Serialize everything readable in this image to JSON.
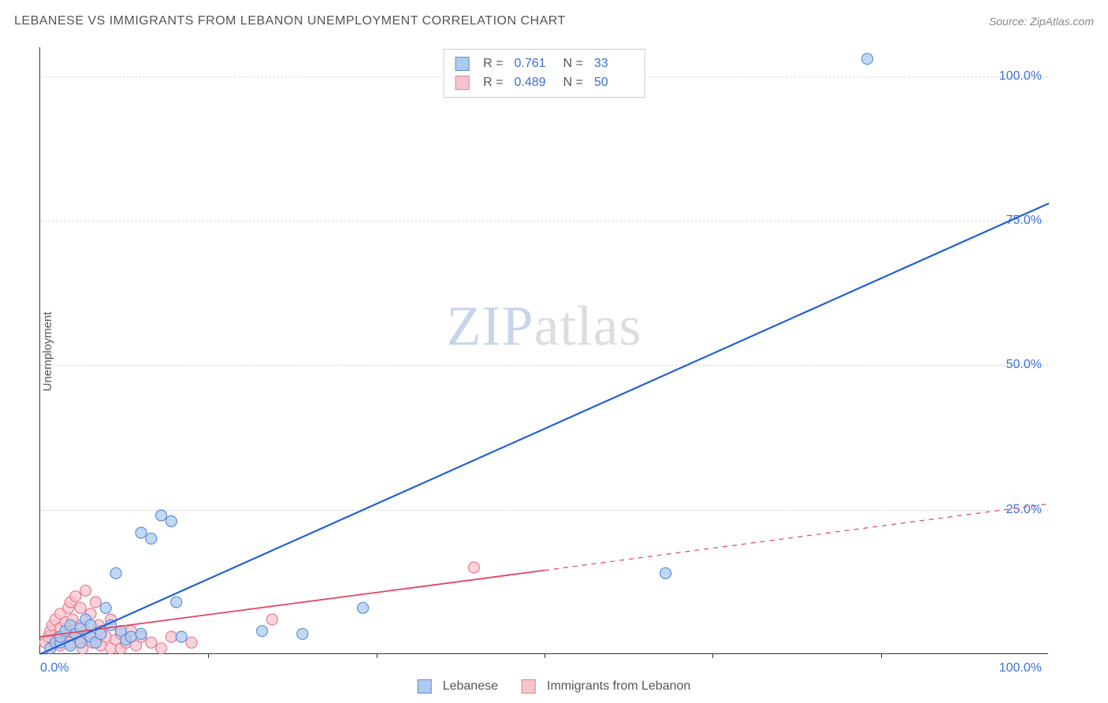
{
  "title": "LEBANESE VS IMMIGRANTS FROM LEBANON UNEMPLOYMENT CORRELATION CHART",
  "source": "Source: ZipAtlas.com",
  "watermark_a": "ZIP",
  "watermark_b": "atlas",
  "y_axis_label": "Unemployment",
  "chart": {
    "type": "scatter-with-regression",
    "background_color": "#ffffff",
    "grid_color": "#d8d8d8",
    "axis_color": "#333333",
    "tick_label_color": "#3b6fd8",
    "xlim": [
      0,
      100
    ],
    "ylim": [
      0,
      105
    ],
    "y_ticks": [
      25,
      50,
      75,
      100
    ],
    "y_tick_labels": [
      "25.0%",
      "50.0%",
      "75.0%",
      "100.0%"
    ],
    "x_corner_labels": [
      "0.0%",
      "100.0%"
    ],
    "x_minor_ticks": [
      16.67,
      33.33,
      50,
      66.67,
      83.33
    ],
    "marker_radius": 7,
    "marker_stroke_width": 1.2,
    "series": [
      {
        "key": "lebanese",
        "label": "Lebanese",
        "color_fill": "#aec9ef",
        "color_stroke": "#5f8fd8",
        "reg_line_color": "#1f61d6",
        "reg_line_width": 2.2,
        "reg_dash_after_x": 100,
        "R": "0.761",
        "N": "33",
        "reg": {
          "x1": 0,
          "y1": 0,
          "x2": 100,
          "y2": 78
        },
        "points": [
          [
            1,
            1
          ],
          [
            1.5,
            2
          ],
          [
            2,
            2
          ],
          [
            2,
            3
          ],
          [
            2.5,
            4
          ],
          [
            3,
            1.5
          ],
          [
            3,
            5
          ],
          [
            3.5,
            3.5
          ],
          [
            4,
            2
          ],
          [
            4,
            4.5
          ],
          [
            4.5,
            6
          ],
          [
            5,
            3
          ],
          [
            5,
            5
          ],
          [
            5.5,
            2
          ],
          [
            6,
            3.5
          ],
          [
            6.5,
            8
          ],
          [
            7,
            5
          ],
          [
            7.5,
            14
          ],
          [
            8,
            4
          ],
          [
            8.5,
            2.5
          ],
          [
            9,
            3
          ],
          [
            10,
            3.5
          ],
          [
            10,
            21
          ],
          [
            11,
            20
          ],
          [
            12,
            24
          ],
          [
            13,
            23
          ],
          [
            13.5,
            9
          ],
          [
            14,
            3
          ],
          [
            22,
            4
          ],
          [
            26,
            3.5
          ],
          [
            32,
            8
          ],
          [
            62,
            14
          ],
          [
            82,
            103
          ]
        ]
      },
      {
        "key": "immigrants",
        "label": "Immigrants from Lebanon",
        "color_fill": "#f6c4ce",
        "color_stroke": "#e77b93",
        "reg_line_color": "#e2435f",
        "reg_line_width": 1.8,
        "reg_dash_after_x": 50,
        "R": "0.489",
        "N": "50",
        "reg": {
          "x1": 0,
          "y1": 3,
          "x2": 100,
          "y2": 26
        },
        "points": [
          [
            0.5,
            2
          ],
          [
            0.8,
            3
          ],
          [
            1,
            1
          ],
          [
            1,
            4
          ],
          [
            1.2,
            5
          ],
          [
            1.5,
            2
          ],
          [
            1.5,
            6
          ],
          [
            1.8,
            3
          ],
          [
            2,
            1.5
          ],
          [
            2,
            4.5
          ],
          [
            2,
            7
          ],
          [
            2.2,
            2.5
          ],
          [
            2.5,
            3
          ],
          [
            2.5,
            5.5
          ],
          [
            2.8,
            8
          ],
          [
            3,
            2
          ],
          [
            3,
            4
          ],
          [
            3,
            9
          ],
          [
            3.2,
            6
          ],
          [
            3.5,
            3.5
          ],
          [
            3.5,
            10
          ],
          [
            3.8,
            2.5
          ],
          [
            4,
            5
          ],
          [
            4,
            8
          ],
          [
            4.2,
            1
          ],
          [
            4.5,
            4
          ],
          [
            4.5,
            11
          ],
          [
            5,
            3
          ],
          [
            5,
            7
          ],
          [
            5.2,
            2
          ],
          [
            5.5,
            9
          ],
          [
            5.8,
            5
          ],
          [
            6,
            1.5
          ],
          [
            6,
            4
          ],
          [
            6.5,
            3
          ],
          [
            7,
            6
          ],
          [
            7,
            1
          ],
          [
            7.5,
            2.5
          ],
          [
            8,
            3.5
          ],
          [
            8,
            1
          ],
          [
            8.5,
            2
          ],
          [
            9,
            4
          ],
          [
            9.5,
            1.5
          ],
          [
            10,
            3
          ],
          [
            11,
            2
          ],
          [
            12,
            1
          ],
          [
            13,
            3
          ],
          [
            15,
            2
          ],
          [
            23,
            6
          ],
          [
            43,
            15
          ]
        ]
      }
    ]
  },
  "legend_top": {
    "r_label": "R =",
    "n_label": "N ="
  }
}
